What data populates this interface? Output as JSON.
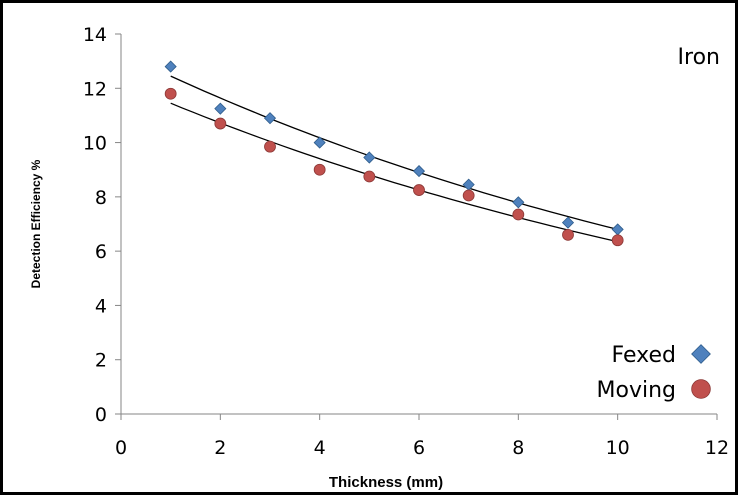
{
  "chart_data": {
    "type": "scatter",
    "title": "",
    "annotation": "Iron",
    "xlabel": "Thickness (mm)",
    "ylabel": "Detection Efficiency %",
    "xlim": [
      0,
      12
    ],
    "ylim": [
      0,
      14
    ],
    "xticks": [
      0,
      2,
      4,
      6,
      8,
      10,
      12
    ],
    "yticks": [
      0,
      2,
      4,
      6,
      8,
      10,
      12,
      14
    ],
    "grid": false,
    "legend_position": "bottom-right",
    "series": [
      {
        "name": "Fexed",
        "marker": "diamond",
        "color": "#4f81bd",
        "x": [
          1,
          2,
          3,
          4,
          5,
          6,
          7,
          8,
          9,
          10
        ],
        "y": [
          12.8,
          11.25,
          10.9,
          10.0,
          9.45,
          8.95,
          8.45,
          7.8,
          7.05,
          6.8
        ],
        "trendline": {
          "type": "exponential",
          "from": [
            1,
            12.45
          ],
          "to": [
            10,
            6.8
          ]
        }
      },
      {
        "name": "Moving",
        "marker": "circle",
        "color": "#c0504d",
        "x": [
          1,
          2,
          3,
          4,
          5,
          6,
          7,
          8,
          9,
          10
        ],
        "y": [
          11.8,
          10.7,
          9.85,
          9.0,
          8.75,
          8.25,
          8.05,
          7.35,
          6.6,
          6.4
        ],
        "trendline": {
          "type": "exponential",
          "from": [
            1,
            11.45
          ],
          "to": [
            10,
            6.35
          ]
        }
      }
    ]
  }
}
